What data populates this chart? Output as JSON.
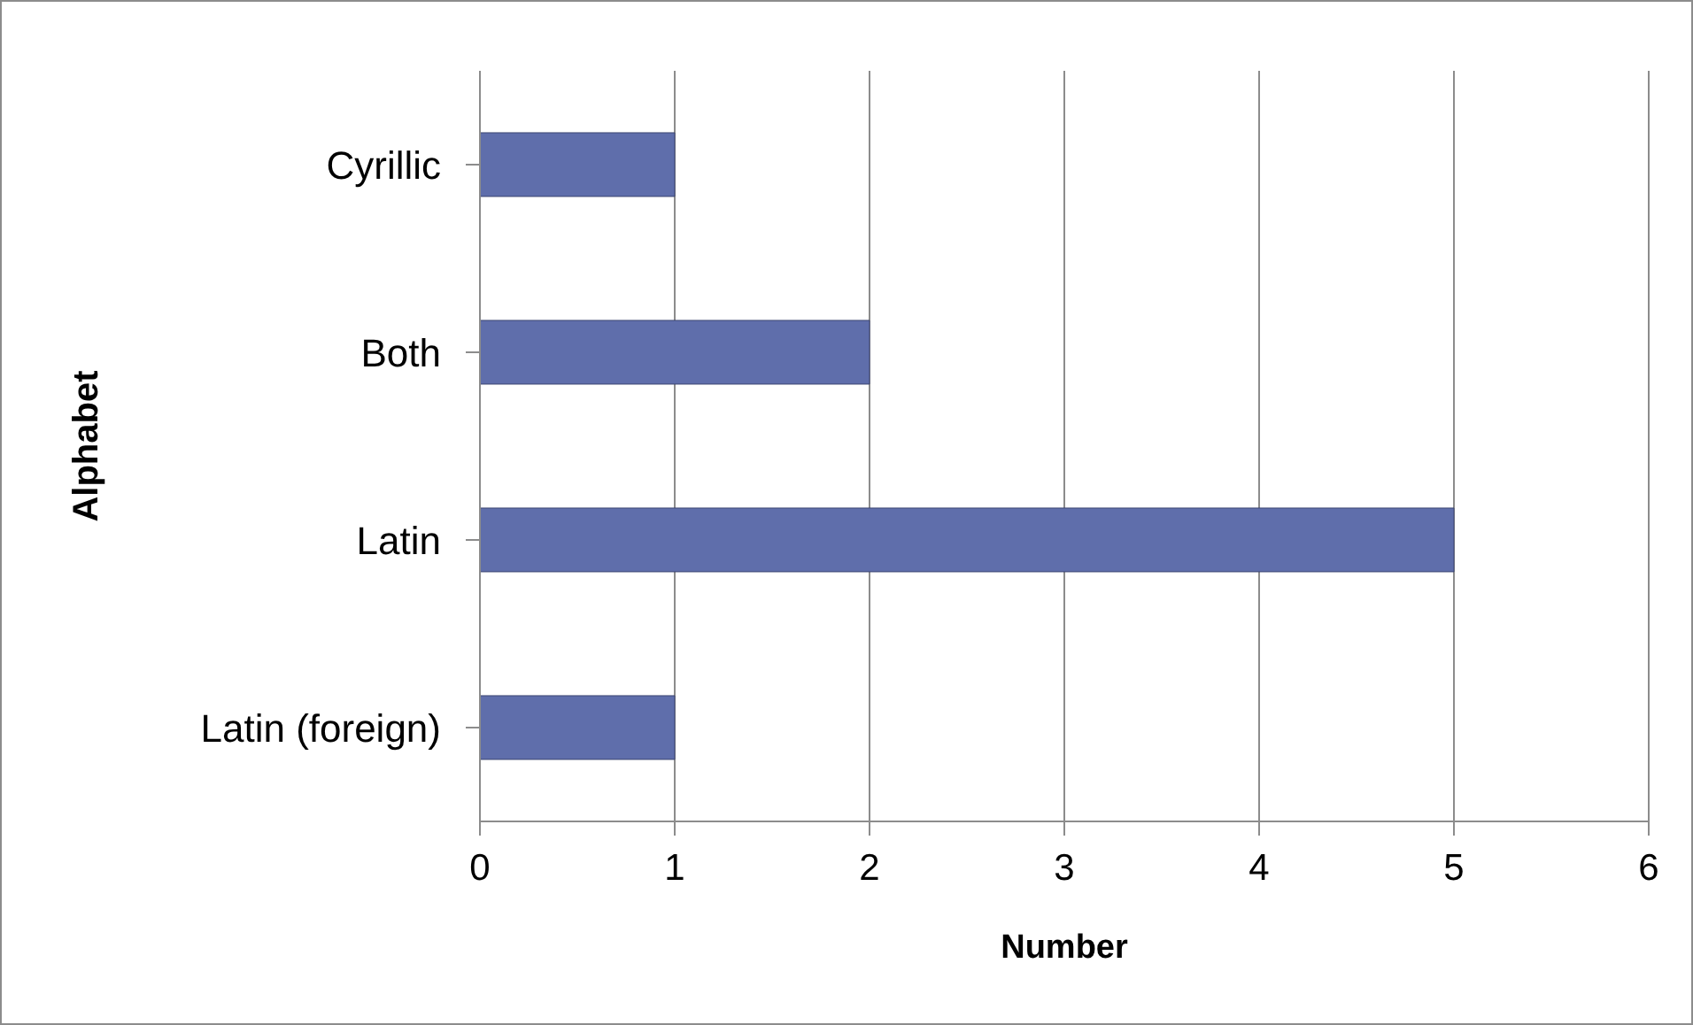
{
  "chart_data": {
    "type": "bar",
    "orientation": "horizontal",
    "xlabel": "Number",
    "ylabel": "Alphabet",
    "categories": [
      "Cyrillic",
      "Both",
      "Latin",
      "Latin (foreign)"
    ],
    "values": [
      1,
      2,
      5,
      1
    ],
    "color": "#5f6eab",
    "xlim": [
      0,
      6
    ],
    "xticks": [
      0,
      1,
      2,
      3,
      4,
      5,
      6
    ],
    "grid": "x"
  }
}
